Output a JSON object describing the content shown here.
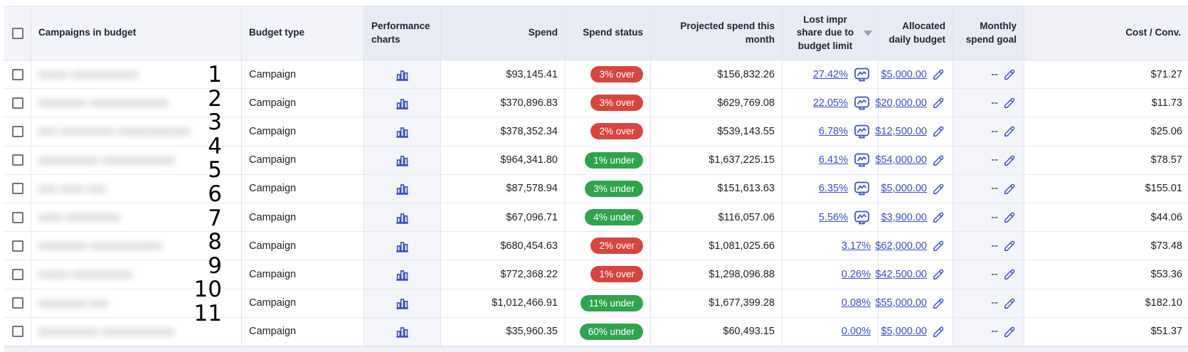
{
  "table": {
    "columns": [
      {
        "key": "select",
        "label": ""
      },
      {
        "key": "name",
        "label": "Campaigns in budget"
      },
      {
        "key": "budget_type",
        "label": "Budget type"
      },
      {
        "key": "charts",
        "label": "Performance charts"
      },
      {
        "key": "spend",
        "label": "Spend"
      },
      {
        "key": "spend_status",
        "label": "Spend status"
      },
      {
        "key": "projected",
        "label": "Projected spend this month"
      },
      {
        "key": "lost_share",
        "label": "Lost impr share due to budget limit",
        "sorted": "descending"
      },
      {
        "key": "allocated",
        "label": "Allocated daily budget"
      },
      {
        "key": "monthly_goal",
        "label": "Monthly spend goal"
      },
      {
        "key": "cost_conv",
        "label": "Cost / Conv."
      }
    ],
    "rows": [
      {
        "masked_name": "xxxxx xxxxxxxxxxx",
        "budget_type": "Campaign",
        "spend": "$93,145.41",
        "status": "3% over",
        "status_kind": "over",
        "projected": "$156,832.26",
        "lost_share": "27.42%",
        "lost_share_report_icon": true,
        "allocated": "$5,000.00",
        "monthly_goal": "--",
        "cost_conv": "$71.27"
      },
      {
        "masked_name": "xxxxxxxx xxxxxxxxxxxxx",
        "budget_type": "Campaign",
        "spend": "$370,896.83",
        "status": "3% over",
        "status_kind": "over",
        "projected": "$629,769.08",
        "lost_share": "22.05%",
        "lost_share_report_icon": true,
        "allocated": "$20,000.00",
        "monthly_goal": "--",
        "cost_conv": "$11.73"
      },
      {
        "masked_name": "xxx xxxxxxxxx xxxxxxxxxxxx",
        "budget_type": "Campaign",
        "spend": "$378,352.34",
        "status": "2% over",
        "status_kind": "over",
        "projected": "$539,143.55",
        "lost_share": "6.78%",
        "lost_share_report_icon": true,
        "allocated": "$12,500.00",
        "monthly_goal": "--",
        "cost_conv": "$25.06"
      },
      {
        "masked_name": "xxxxxxxxxx xxxxxxxxxxxx",
        "budget_type": "Campaign",
        "spend": "$964,341.80",
        "status": "1% under",
        "status_kind": "under",
        "projected": "$1,637,225.15",
        "lost_share": "6.41%",
        "lost_share_report_icon": true,
        "allocated": "$54,000.00",
        "monthly_goal": "--",
        "cost_conv": "$78.57"
      },
      {
        "masked_name": "xxx xxxx xxx",
        "budget_type": "Campaign",
        "spend": "$87,578.94",
        "status": "3% under",
        "status_kind": "under",
        "projected": "$151,613.63",
        "lost_share": "6.35%",
        "lost_share_report_icon": true,
        "allocated": "$5,000.00",
        "monthly_goal": "--",
        "cost_conv": "$155.01"
      },
      {
        "masked_name": "xxxx xxxxxxxxx",
        "budget_type": "Campaign",
        "spend": "$67,096.71",
        "status": "4% under",
        "status_kind": "under",
        "projected": "$116,057.06",
        "lost_share": "5.56%",
        "lost_share_report_icon": true,
        "allocated": "$3,900.00",
        "monthly_goal": "--",
        "cost_conv": "$44.06"
      },
      {
        "masked_name": "xxxxxxxx xxxxxxxxxxxx",
        "budget_type": "Campaign",
        "spend": "$680,454.63",
        "status": "2% over",
        "status_kind": "over",
        "projected": "$1,081,025.66",
        "lost_share": "3.17%",
        "lost_share_report_icon": false,
        "allocated": "$62,000.00",
        "monthly_goal": "--",
        "cost_conv": "$73.48"
      },
      {
        "masked_name": "xxxxx xxxxxxxxxx",
        "budget_type": "Campaign",
        "spend": "$772,368.22",
        "status": "1% over",
        "status_kind": "over",
        "projected": "$1,298,096.88",
        "lost_share": "0.26%",
        "lost_share_report_icon": false,
        "allocated": "$42,500.00",
        "monthly_goal": "--",
        "cost_conv": "$53.36"
      },
      {
        "masked_name": "xxxxxxxx xxx",
        "budget_type": "Campaign",
        "spend": "$1,012,466.91",
        "status": "11% under",
        "status_kind": "under",
        "projected": "$1,677,399.28",
        "lost_share": "0.08%",
        "lost_share_report_icon": false,
        "allocated": "$55,000.00",
        "monthly_goal": "--",
        "cost_conv": "$182.10"
      },
      {
        "masked_name": "xxxxxxxxxx xxxxxxxxxxxx",
        "budget_type": "Campaign",
        "spend": "$35,960.35",
        "status": "60% under",
        "status_kind": "under",
        "projected": "$60,493.15",
        "lost_share": "0.00%",
        "lost_share_report_icon": false,
        "allocated": "$5,000.00",
        "monthly_goal": "--",
        "cost_conv": "$51.37"
      }
    ],
    "annotations": [
      "1",
      "2",
      "3",
      "4",
      "5",
      "6",
      "7",
      "8",
      "9",
      "10",
      "11"
    ]
  },
  "icons": {
    "performance_chart": "bar-chart-icon",
    "lost_share_report": "monitor-chart-icon",
    "edit": "pencil-icon",
    "sort": "sort-descending-icon"
  },
  "colors": {
    "link_indigo": "#3b4fc4",
    "status_over_red": "#d6453f",
    "status_under_green": "#2fa44f",
    "header_bg": "#e9ebf4",
    "header_bg_light": "#f2f4f9",
    "tinted_column_bg": "#f4f5fa"
  }
}
